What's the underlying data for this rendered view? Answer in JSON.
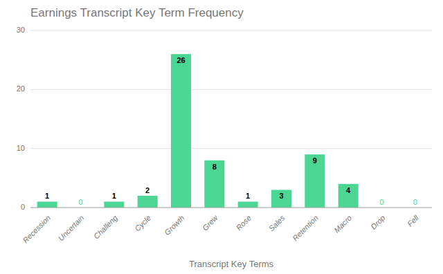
{
  "chart_data": {
    "type": "bar",
    "title": "Earnings Transcript Key Term Frequency",
    "xlabel": "Transcript Key Terms",
    "categories": [
      "Recession",
      "Uncertain",
      "Challeng",
      "Cycle",
      "Growth",
      "Grew",
      "Rose",
      "Sales",
      "Retention",
      "Macro",
      "Drop",
      "Fell"
    ],
    "values": [
      1,
      0,
      1,
      2,
      26,
      8,
      1,
      3,
      9,
      4,
      0,
      0
    ],
    "color": "#4cd694",
    "ylim": [
      0,
      30
    ],
    "yticks": [
      0,
      10,
      20,
      30
    ],
    "grid": true,
    "data_labels": true
  }
}
